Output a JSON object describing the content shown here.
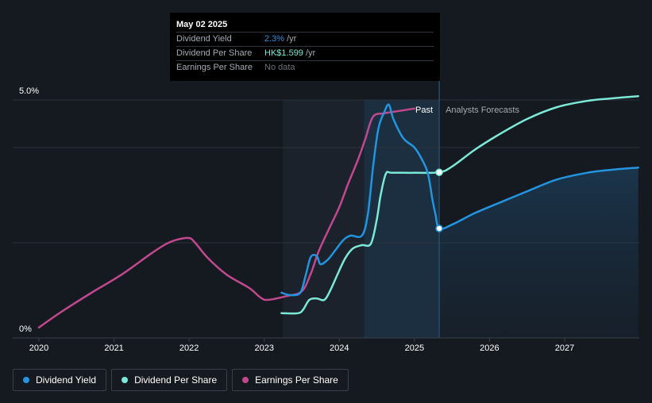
{
  "tooltip": {
    "date": "May 02 2025",
    "rows": [
      {
        "label": "Dividend Yield",
        "value": "2.3%",
        "unit": "/yr"
      },
      {
        "label": "Dividend Per Share",
        "value": "HK$1.599",
        "unit": "/yr"
      },
      {
        "label": "Earnings Per Share",
        "value": "No data"
      }
    ]
  },
  "regions": {
    "past": "Past",
    "forecast": "Analysts Forecasts"
  },
  "legend": [
    {
      "label": "Dividend Yield",
      "color": "#2394df"
    },
    {
      "label": "Dividend Per Share",
      "color": "#7ce8d6"
    },
    {
      "label": "Earnings Per Share",
      "color": "#c2488e"
    }
  ],
  "chart_data": {
    "type": "line",
    "x_ticks": [
      "2020",
      "2021",
      "2022",
      "2023",
      "2024",
      "2025",
      "2026",
      "2027"
    ],
    "y_ticks": [
      "0%",
      "5.0%"
    ],
    "ylim": [
      0,
      5.0
    ],
    "xlim": [
      2019.98,
      2027.98
    ],
    "divider_x": 2025.33,
    "past_band": [
      2023.25,
      2025.33
    ],
    "highlight_band": [
      2024.33,
      2025.33
    ],
    "gridlines": [
      0,
      2.0,
      4.0,
      5.0
    ],
    "series": [
      {
        "name": "Dividend Yield",
        "color": "#2394df",
        "points": [
          [
            2023.23,
            0.95
          ],
          [
            2023.35,
            0.9
          ],
          [
            2023.48,
            0.95
          ],
          [
            2023.55,
            1.3
          ],
          [
            2023.62,
            1.7
          ],
          [
            2023.7,
            1.72
          ],
          [
            2023.75,
            1.55
          ],
          [
            2023.85,
            1.65
          ],
          [
            2023.95,
            1.85
          ],
          [
            2024.05,
            2.05
          ],
          [
            2024.15,
            2.15
          ],
          [
            2024.3,
            2.15
          ],
          [
            2024.38,
            2.6
          ],
          [
            2024.45,
            3.6
          ],
          [
            2024.52,
            4.4
          ],
          [
            2024.6,
            4.75
          ],
          [
            2024.66,
            4.9
          ],
          [
            2024.72,
            4.6
          ],
          [
            2024.85,
            4.2
          ],
          [
            2025.0,
            4.0
          ],
          [
            2025.1,
            3.75
          ],
          [
            2025.18,
            3.45
          ],
          [
            2025.24,
            2.9
          ],
          [
            2025.28,
            2.6
          ],
          [
            2025.33,
            2.3
          ],
          [
            2025.5,
            2.38
          ],
          [
            2025.8,
            2.62
          ],
          [
            2026.1,
            2.82
          ],
          [
            2026.5,
            3.08
          ],
          [
            2026.9,
            3.33
          ],
          [
            2027.3,
            3.47
          ],
          [
            2027.6,
            3.53
          ],
          [
            2027.98,
            3.58
          ]
        ]
      },
      {
        "name": "Dividend Per Share",
        "color": "#7ce8d6",
        "points": [
          [
            2023.23,
            0.52
          ],
          [
            2023.45,
            0.52
          ],
          [
            2023.52,
            0.6
          ],
          [
            2023.6,
            0.8
          ],
          [
            2023.7,
            0.83
          ],
          [
            2023.8,
            0.8
          ],
          [
            2023.88,
            1.0
          ],
          [
            2023.98,
            1.35
          ],
          [
            2024.08,
            1.68
          ],
          [
            2024.18,
            1.88
          ],
          [
            2024.3,
            1.95
          ],
          [
            2024.42,
            1.98
          ],
          [
            2024.5,
            2.5
          ],
          [
            2024.55,
            3.0
          ],
          [
            2024.62,
            3.45
          ],
          [
            2024.7,
            3.47
          ],
          [
            2025.0,
            3.47
          ],
          [
            2025.33,
            3.48
          ],
          [
            2025.5,
            3.6
          ],
          [
            2025.8,
            3.95
          ],
          [
            2026.1,
            4.25
          ],
          [
            2026.5,
            4.6
          ],
          [
            2026.9,
            4.85
          ],
          [
            2027.3,
            4.98
          ],
          [
            2027.6,
            5.03
          ],
          [
            2027.98,
            5.08
          ]
        ]
      },
      {
        "name": "Earnings Per Share",
        "color": "#c2488e",
        "points": [
          [
            2020.0,
            0.22
          ],
          [
            2020.3,
            0.55
          ],
          [
            2020.7,
            0.95
          ],
          [
            2021.1,
            1.33
          ],
          [
            2021.5,
            1.78
          ],
          [
            2021.7,
            1.98
          ],
          [
            2021.85,
            2.07
          ],
          [
            2022.0,
            2.1
          ],
          [
            2022.08,
            2.0
          ],
          [
            2022.25,
            1.68
          ],
          [
            2022.5,
            1.33
          ],
          [
            2022.8,
            1.05
          ],
          [
            2022.95,
            0.85
          ],
          [
            2023.05,
            0.8
          ],
          [
            2023.3,
            0.88
          ],
          [
            2023.5,
            0.98
          ],
          [
            2023.62,
            1.35
          ],
          [
            2023.72,
            1.8
          ],
          [
            2023.85,
            2.25
          ],
          [
            2024.0,
            2.75
          ],
          [
            2024.12,
            3.25
          ],
          [
            2024.25,
            3.75
          ],
          [
            2024.35,
            4.2
          ],
          [
            2024.45,
            4.65
          ],
          [
            2024.6,
            4.72
          ],
          [
            2024.8,
            4.77
          ],
          [
            2025.0,
            4.82
          ]
        ]
      }
    ],
    "markers": [
      {
        "series": "Dividend Yield",
        "x": 2025.33,
        "y": 2.3
      },
      {
        "series": "Dividend Per Share",
        "x": 2025.33,
        "y": 3.48
      }
    ]
  }
}
